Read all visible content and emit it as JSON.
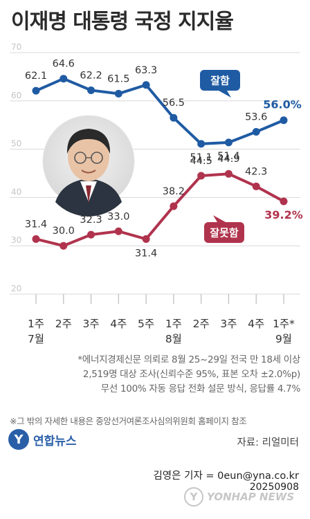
{
  "title": "이재명 대통령 국정 지지율",
  "colors": {
    "approve": "#1f5ba3",
    "disapprove": "#b0334d",
    "grid": "#d8d8d8",
    "axis_text": "#c4c4c4"
  },
  "chart_data": {
    "type": "line",
    "title": "이재명 대통령 국정 지지율",
    "ylim": [
      20,
      70
    ],
    "yticks": [
      20,
      30,
      40,
      50,
      60,
      70
    ],
    "grid": true,
    "categories": [
      "1주\n7월",
      "2주",
      "3주",
      "4주",
      "5주",
      "1주\n8월",
      "2주",
      "3주",
      "4주",
      "1주*\n9월"
    ],
    "series": [
      {
        "name": "잘함",
        "color": "#1f5ba3",
        "values": [
          62.1,
          64.6,
          62.2,
          61.5,
          63.3,
          56.5,
          51.1,
          51.4,
          53.6,
          56.0
        ],
        "labels": [
          "62.1",
          "64.6",
          "62.2",
          "61.5",
          "63.3",
          "56.5",
          "51.1",
          "51.4",
          "53.6",
          "56.0%"
        ]
      },
      {
        "name": "잘못함",
        "color": "#b0334d",
        "values": [
          31.4,
          30.0,
          32.3,
          33.0,
          31.4,
          38.2,
          44.5,
          44.9,
          42.3,
          39.2
        ],
        "labels": [
          "31.4",
          "30.0",
          "32.3",
          "33.0",
          "31.4",
          "38.2",
          "44.5",
          "44.9",
          "42.3",
          "39.2%"
        ]
      }
    ]
  },
  "note": {
    "line1": "*에너지경제신문 의뢰로 8월 25~29일 전국 만 18세 이상",
    "line2": "2,519명 대상 조사(신뢰수준 95%, 표본 오차 ±2.0%p)",
    "line3": "무선 100% 자동 응답 전화 설문 방식, 응답률 4.7%"
  },
  "footnote": "※그 밖의 자세한 내용은 중앙선거여론조사심의위원회 홈페이지 참조",
  "logo": {
    "mark": "Y",
    "text": "연합뉴스"
  },
  "source": "자료: 리얼미터",
  "credit": "김영은 기자 = 0eun@yna.co.kr",
  "date": "20250908",
  "watermark": {
    "mark": "Y",
    "text": "YONHAP NEWS"
  }
}
